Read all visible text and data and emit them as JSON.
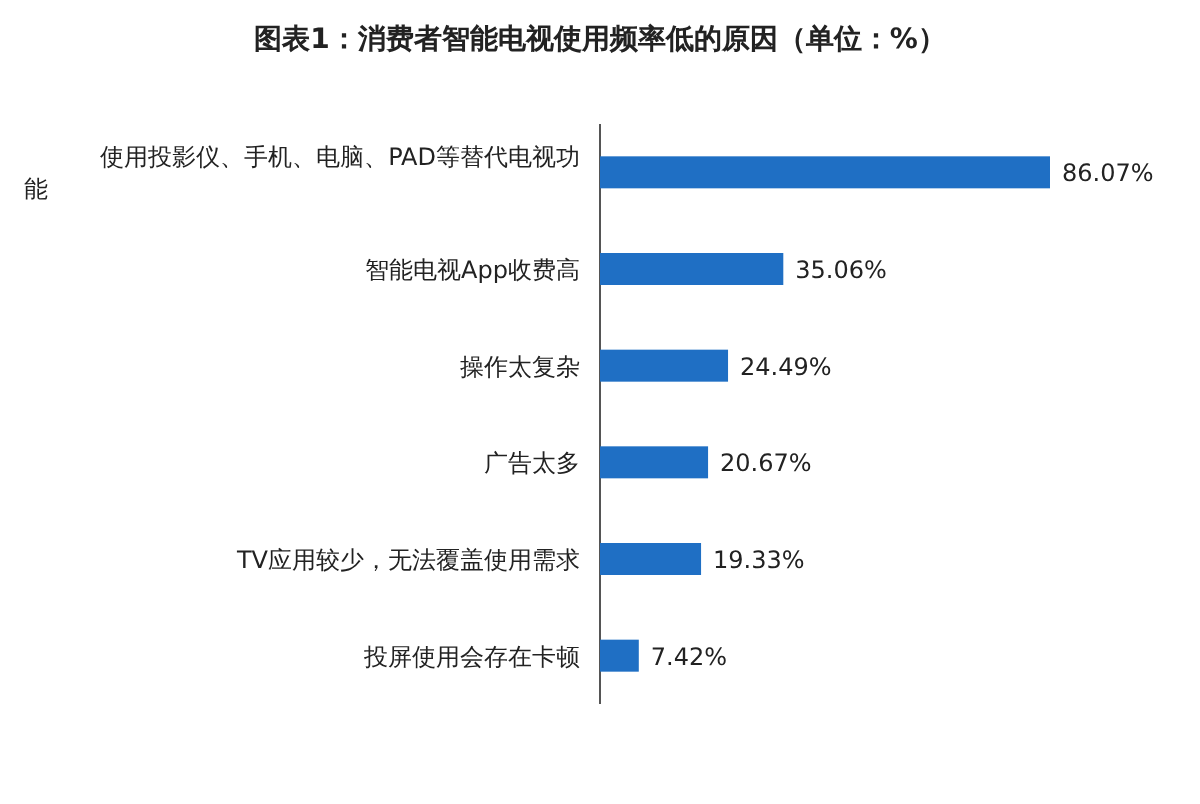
{
  "chart_data": {
    "type": "bar",
    "orientation": "horizontal",
    "title": "图表1：消费者智能电视使用频率低的原因（单位：%）",
    "categories": [
      "使用投影仪、手机、电脑、PAD等替代电视功能",
      "智能电视App收费高",
      "操作太复杂",
      "广告太多",
      "TV应用较少，无法覆盖使用需求",
      "投屏使用会存在卡顿"
    ],
    "values": [
      86.07,
      35.06,
      24.49,
      20.67,
      19.33,
      7.42
    ],
    "value_labels": [
      "86.07%",
      "35.06%",
      "24.49%",
      "20.67%",
      "19.33%",
      "7.42%"
    ],
    "color": "#1f6fc4"
  }
}
